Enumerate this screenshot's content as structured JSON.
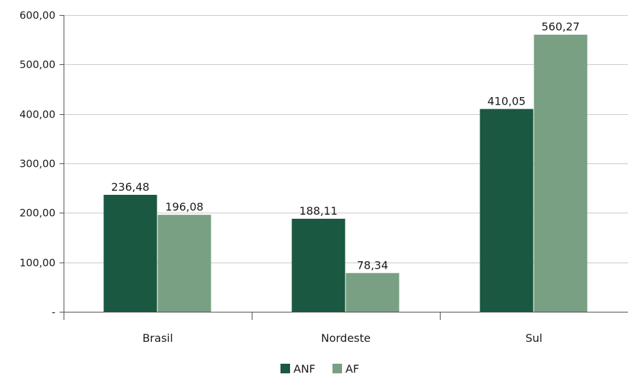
{
  "chart_data": {
    "type": "bar",
    "categories": [
      "Brasil",
      "Nordeste",
      "Sul"
    ],
    "series": [
      {
        "name": "ANF",
        "values": [
          236.48,
          188.11,
          410.05
        ],
        "labels": [
          "236,48",
          "188,11",
          "410,05"
        ],
        "color": "#1a5841"
      },
      {
        "name": "AF",
        "values": [
          196.08,
          78.34,
          560.27
        ],
        "labels": [
          "196,08",
          "78,34",
          "560,27"
        ],
        "color": "#7aa083"
      }
    ],
    "ylim": [
      0,
      600
    ],
    "yticks": [
      {
        "value": 0,
        "label": "-"
      },
      {
        "value": 100,
        "label": "100,00"
      },
      {
        "value": 200,
        "label": "200,00"
      },
      {
        "value": 300,
        "label": "300,00"
      },
      {
        "value": 400,
        "label": "400,00"
      },
      {
        "value": 500,
        "label": "500,00"
      },
      {
        "value": 600,
        "label": "600,00"
      }
    ],
    "grid": true,
    "legend_position": "bottom-center",
    "gridline_color": "#c8c8c8",
    "axis_color": "#4d4d4d"
  }
}
